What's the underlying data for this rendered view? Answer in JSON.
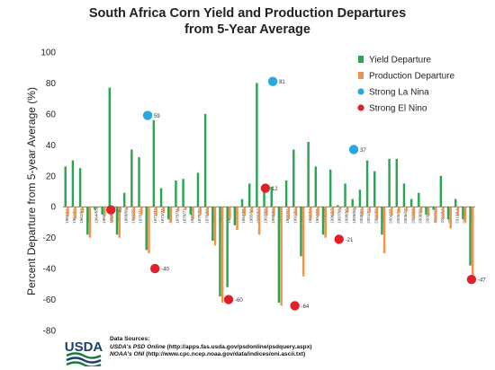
{
  "chart_data": {
    "type": "bar",
    "title_line1": "South Africa Corn Yield and Production Departures",
    "title_line2": "from 5-Year Average",
    "ylabel": "Percent Departure from 5-year Average (%)",
    "xlabel": "",
    "ylim": [
      -80,
      100
    ],
    "yticks": [
      -80,
      -60,
      -40,
      -20,
      0,
      20,
      40,
      60,
      80,
      100
    ],
    "grid": false,
    "legend_position": "top-right",
    "categories": [
      "1960/61",
      "1961/62",
      "1962/63",
      "1963/64",
      "1964/65",
      "1965/66",
      "1966/67",
      "1967/68",
      "1968/69",
      "1969/70",
      "1970/71",
      "1971/72",
      "1972/73",
      "1973/74",
      "1974/75",
      "1975/76",
      "1976/77",
      "1977/78",
      "1978/79",
      "1979/80",
      "1980/81",
      "1981/82",
      "1982/83",
      "1983/84",
      "1984/85",
      "1985/86",
      "1986/87",
      "1987/88",
      "1988/89",
      "1989/90",
      "1990/91",
      "1991/92",
      "1992/93",
      "1993/94",
      "1994/95",
      "1995/96",
      "1996/97",
      "1997/98",
      "1998/99",
      "1999/00",
      "2000/01",
      "2001/02",
      "2002/03",
      "2003/04",
      "2004/05",
      "2005/06",
      "2006/07",
      "2007/08",
      "2008/09",
      "2009/10",
      "2010/11",
      "2011/12",
      "2012/13",
      "2013/14",
      "2014/15",
      "2015/16"
    ],
    "series": [
      {
        "name": "Yield Departure",
        "color": "#2aa653",
        "values": [
          26,
          30,
          25,
          -18,
          -2,
          -5,
          77,
          -18,
          9,
          37,
          32,
          -28,
          56,
          12,
          -8,
          17,
          18,
          -5,
          22,
          60,
          -22,
          -58,
          -52,
          -12,
          5,
          15,
          80,
          14,
          13,
          -62,
          17,
          37,
          -32,
          42,
          26,
          -18,
          24,
          1,
          15,
          5,
          11,
          30,
          23,
          -18,
          31,
          31,
          15,
          5,
          9,
          -5,
          -2,
          20,
          -8,
          5,
          -8,
          -38
        ]
      },
      {
        "name": "Production Departure",
        "color": "#f0934a",
        "values": [
          -6,
          -8,
          -4,
          -20,
          -1,
          -6,
          -10,
          -20,
          -2,
          -8,
          -5,
          -30,
          -6,
          -4,
          -10,
          -3,
          -2,
          -8,
          -5,
          -6,
          -25,
          -62,
          -8,
          -15,
          -6,
          -4,
          -18,
          -6,
          -6,
          -64,
          -8,
          -6,
          -45,
          -8,
          -6,
          -20,
          -6,
          -2,
          -4,
          -2,
          -6,
          -4,
          -8,
          -30,
          -6,
          -4,
          -3,
          -8,
          -4,
          -6,
          -10,
          -8,
          -14,
          -6,
          -10,
          -45
        ]
      }
    ],
    "enso_markers": [
      {
        "type": "Strong La Nina",
        "color": "#29a7df",
        "category": "1971/72",
        "value": 59,
        "label": "59"
      },
      {
        "type": "Strong La Nina",
        "color": "#29a7df",
        "category": "1988/89",
        "value": 81,
        "label": "81"
      },
      {
        "type": "Strong La Nina",
        "color": "#29a7df",
        "category": "1999/00",
        "value": 37,
        "label": "37"
      },
      {
        "type": "Strong El Nino",
        "color": "#e0202b",
        "category": "1966/67",
        "value": -2,
        "label": "-2"
      },
      {
        "type": "Strong El Nino",
        "color": "#e0202b",
        "category": "1972/73",
        "value": -40,
        "label": "-40"
      },
      {
        "type": "Strong El Nino",
        "color": "#e0202b",
        "category": "1982/83",
        "value": -60,
        "label": "-60"
      },
      {
        "type": "Strong El Nino",
        "color": "#e0202b",
        "category": "1987/88",
        "value": 12,
        "label": "12"
      },
      {
        "type": "Strong El Nino",
        "color": "#e0202b",
        "category": "1991/92",
        "value": -64,
        "label": "-64"
      },
      {
        "type": "Strong El Nino",
        "color": "#e0202b",
        "category": "1997/98",
        "value": -21,
        "label": "-21"
      },
      {
        "type": "Strong El Nino",
        "color": "#e0202b",
        "category": "2015/16",
        "value": -47,
        "label": "-47"
      }
    ],
    "legend": [
      {
        "label": "Yield Departure",
        "color": "#2aa653",
        "shape": "square"
      },
      {
        "label": "Production Departure",
        "color": "#f0934a",
        "shape": "square"
      },
      {
        "label": "Strong La Nina",
        "color": "#29a7df",
        "shape": "circle"
      },
      {
        "label": "Strong El Nino",
        "color": "#e0202b",
        "shape": "circle"
      }
    ]
  },
  "footer": {
    "logo_text": "USDA",
    "sources_title": "Data Sources:",
    "source1_name": "USDA's PSD Online",
    "source1_url": "(http://apps.fas.usda.gov/psdonline/psdquery.aspx)",
    "source2_name": "NOAA's ONI",
    "source2_url": "(http://www.cpc.ncep.noaa.gov/data/indices/oni.ascii.txt)"
  }
}
